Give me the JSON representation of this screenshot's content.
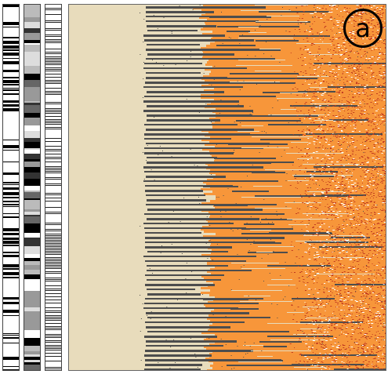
{
  "panel": {
    "label": "a"
  },
  "colors": {
    "background": "#e8dcbc",
    "dark_bar": "#4d4d4d",
    "orange": "#f7963a",
    "red_speckle": "#c03a20",
    "white": "#ffffff"
  },
  "strips": [
    {
      "name": "left-barcode-strip",
      "style": "black-white"
    },
    {
      "name": "middle-barcode-strip",
      "style": "grayscale"
    },
    {
      "name": "right-barcode-strip",
      "style": "fine-lines"
    }
  ]
}
